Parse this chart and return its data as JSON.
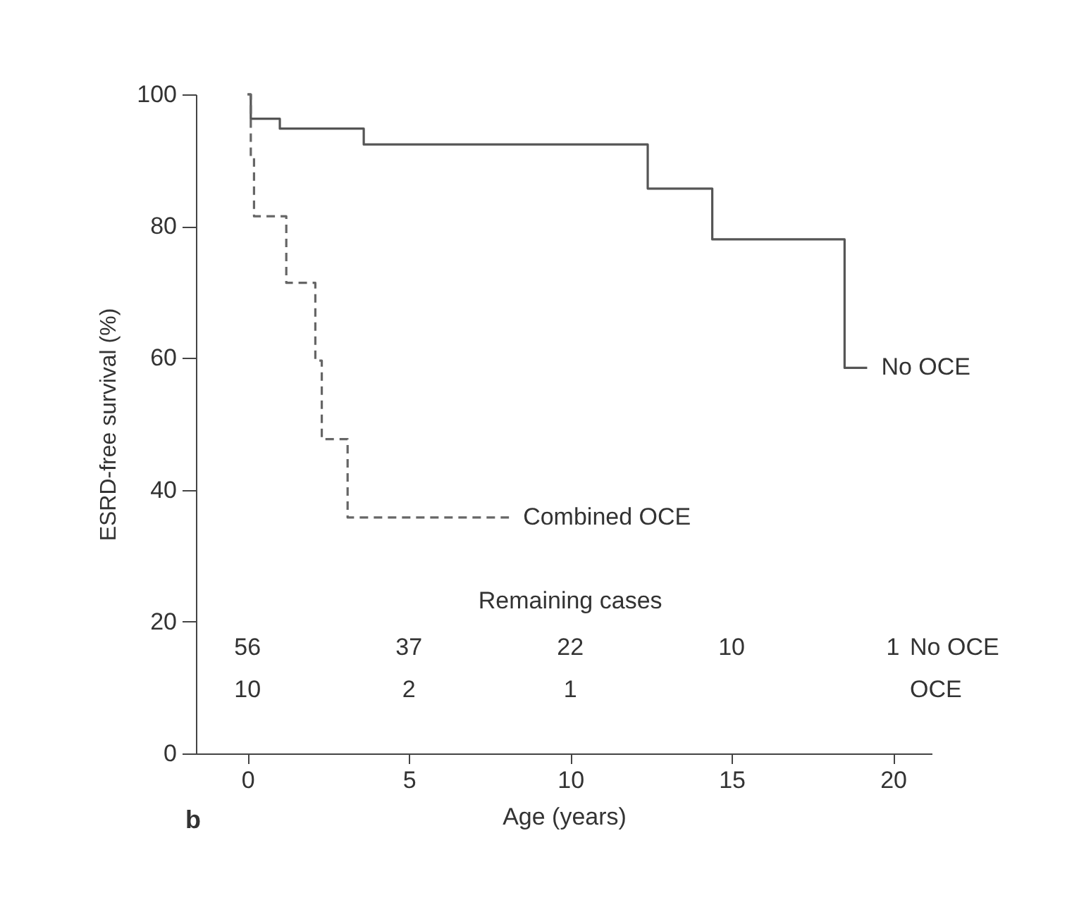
{
  "chart_data": {
    "type": "step",
    "xlabel": "Age (years)",
    "ylabel": "ESRD-free survival (%)",
    "xlim": [
      -1.6,
      21.2
    ],
    "xticks": [
      0,
      5,
      10,
      15,
      20
    ],
    "ylim": [
      0,
      100
    ],
    "yticks": [
      0,
      20,
      40,
      60,
      80,
      100
    ],
    "grid": false,
    "legend": false,
    "marker": "none",
    "series": [
      {
        "name": "No OCE",
        "color": "#555555",
        "line_style": "solid",
        "x": [
          0,
          0.1,
          1.0,
          3.6,
          12.4,
          14.4,
          18.5,
          19.2
        ],
        "values": [
          100,
          96.3,
          94.8,
          92.4,
          85.7,
          78,
          58.5,
          58.5
        ]
      },
      {
        "name": "Combined OCE",
        "color": "#666666",
        "line_style": "dashed",
        "x": [
          0,
          0.1,
          0.2,
          1.2,
          2.1,
          2.3,
          3.1,
          8.1
        ],
        "values": [
          100,
          90.6,
          81.5,
          71.4,
          59.6,
          47.7,
          35.8,
          35.8
        ]
      }
    ],
    "annotations": [
      "Remaining cases",
      "56",
      "37",
      "22",
      "10",
      "1",
      "No OCE",
      "10",
      "2",
      "1",
      "OCE",
      "b"
    ]
  }
}
